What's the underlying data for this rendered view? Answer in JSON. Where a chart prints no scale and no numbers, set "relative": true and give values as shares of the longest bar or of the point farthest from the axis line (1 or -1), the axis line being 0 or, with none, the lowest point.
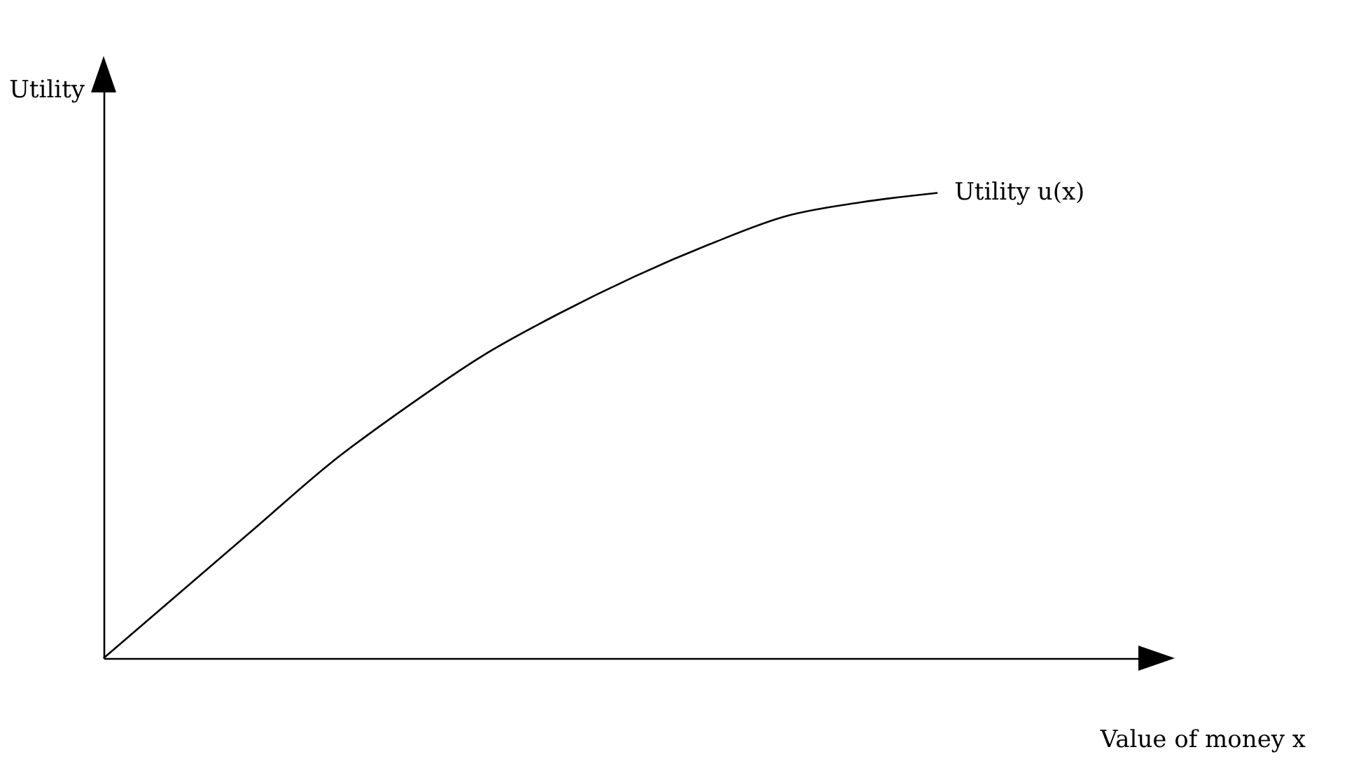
{
  "chart_data": {
    "type": "line",
    "relative": true,
    "xlabel": "Value of money x",
    "ylabel": "Utility",
    "categories": [
      null,
      null,
      null,
      null,
      null,
      null,
      null,
      null,
      null,
      null,
      null,
      null,
      null,
      null,
      null
    ],
    "series": [
      {
        "name": "Utility u(x)",
        "color": "#000000",
        "values": [
          0,
          0.14,
          0.28,
          0.42,
          0.54,
          0.65,
          0.74,
          0.82,
          0.89,
          0.95,
          0.98,
          1.0,
          null,
          null,
          null
        ]
      }
    ],
    "grid": false,
    "marker": "none",
    "line_style": "solid"
  }
}
